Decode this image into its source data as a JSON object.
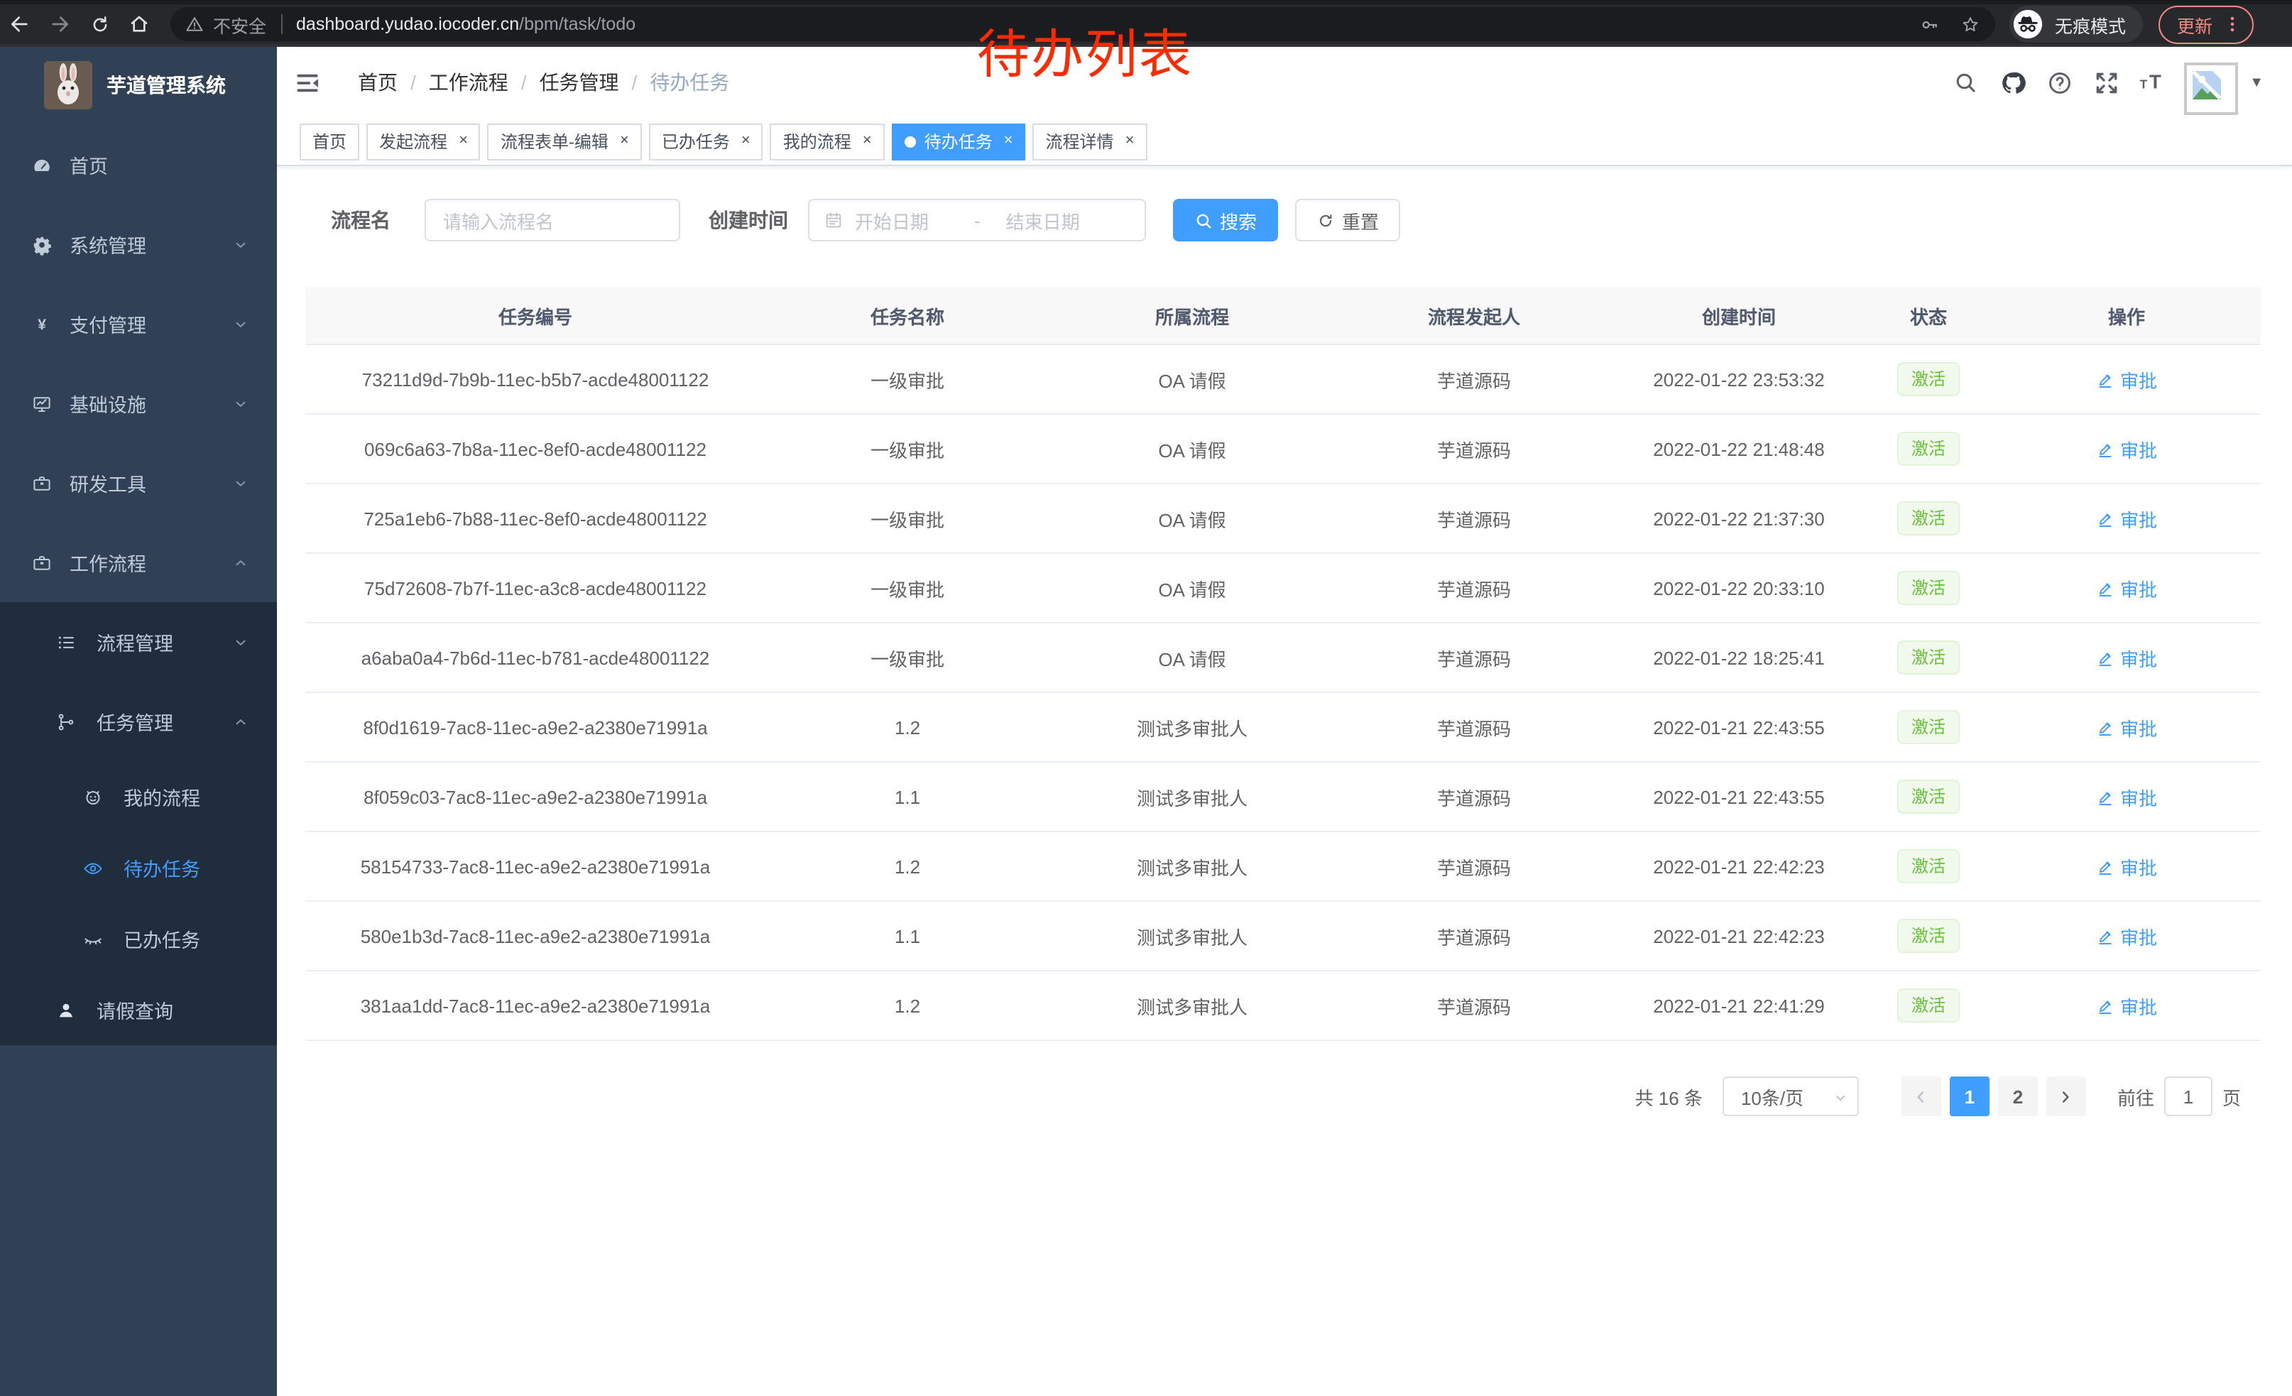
{
  "colors": {
    "accent": "#409eff",
    "sidebar_bg": "#304156",
    "submenu_bg": "#1f2d3d",
    "tag_bg": "#f0f9eb",
    "tag_border": "#e1f3d8",
    "tag_text": "#67c23a",
    "annotation_red": "#fe2b00"
  },
  "browser": {
    "security_label": "不安全",
    "url_host": "dashboard.yudao.iocoder.cn",
    "url_path": "/bpm/task/todo",
    "incognito_label": "无痕模式",
    "update_label": "更新",
    "annotation": "待办列表"
  },
  "sidebar": {
    "app_title": "芋道管理系统",
    "items": [
      {
        "label": "首页",
        "icon": "dashboard-icon",
        "level": 1,
        "chevron": null,
        "dark": false,
        "active": false
      },
      {
        "label": "系统管理",
        "icon": "gear-icon",
        "level": 1,
        "chevron": "down",
        "dark": false,
        "active": false
      },
      {
        "label": "支付管理",
        "icon": "yen-icon",
        "level": 1,
        "chevron": "down",
        "dark": false,
        "active": false
      },
      {
        "label": "基础设施",
        "icon": "monitor-icon",
        "level": 1,
        "chevron": "down",
        "dark": false,
        "active": false
      },
      {
        "label": "研发工具",
        "icon": "briefcase-icon",
        "level": 1,
        "chevron": "down",
        "dark": false,
        "active": false
      },
      {
        "label": "工作流程",
        "icon": "briefcase-icon",
        "level": 1,
        "chevron": "up",
        "dark": false,
        "active": false
      },
      {
        "label": "流程管理",
        "icon": "process-list-icon",
        "level": 2,
        "chevron": "down",
        "dark": true,
        "active": false
      },
      {
        "label": "任务管理",
        "icon": "task-tree-icon",
        "level": 2,
        "chevron": "up",
        "dark": true,
        "active": false
      },
      {
        "label": "我的流程",
        "icon": "robot-icon",
        "level": 3,
        "chevron": null,
        "dark": true,
        "active": false
      },
      {
        "label": "待办任务",
        "icon": "eye-icon",
        "level": 3,
        "chevron": null,
        "dark": true,
        "active": true
      },
      {
        "label": "已办任务",
        "icon": "eye-closed-icon",
        "level": 3,
        "chevron": null,
        "dark": true,
        "active": false
      },
      {
        "label": "请假查询",
        "icon": "user-icon",
        "level": 2,
        "chevron": null,
        "dark": true,
        "active": false,
        "light_icon": true
      }
    ]
  },
  "header": {
    "breadcrumb": [
      "首页",
      "工作流程",
      "任务管理",
      "待办任务"
    ]
  },
  "tabs": [
    {
      "label": "首页",
      "closable": false,
      "active": false
    },
    {
      "label": "发起流程",
      "closable": true,
      "active": false
    },
    {
      "label": "流程表单-编辑",
      "closable": true,
      "active": false
    },
    {
      "label": "已办任务",
      "closable": true,
      "active": false
    },
    {
      "label": "我的流程",
      "closable": true,
      "active": false
    },
    {
      "label": "待办任务",
      "closable": true,
      "active": true
    },
    {
      "label": "流程详情",
      "closable": true,
      "active": false
    }
  ],
  "filters": {
    "name_label": "流程名",
    "name_placeholder": "请输入流程名",
    "time_label": "创建时间",
    "start_placeholder": "开始日期",
    "range_separator": "-",
    "end_placeholder": "结束日期",
    "search_label": "搜索",
    "reset_label": "重置"
  },
  "table": {
    "columns": [
      "任务编号",
      "任务名称",
      "所属流程",
      "流程发起人",
      "创建时间",
      "状态",
      "操作"
    ],
    "action_label": "审批",
    "rows": [
      {
        "id": "73211d9d-7b9b-11ec-b5b7-acde48001122",
        "name": "一级审批",
        "flow": "OA 请假",
        "starter": "芋道源码",
        "time": "2022-01-22 23:53:32",
        "status": "激活",
        "action": "审批"
      },
      {
        "id": "069c6a63-7b8a-11ec-8ef0-acde48001122",
        "name": "一级审批",
        "flow": "OA 请假",
        "starter": "芋道源码",
        "time": "2022-01-22 21:48:48",
        "status": "激活",
        "action": "审批"
      },
      {
        "id": "725a1eb6-7b88-11ec-8ef0-acde48001122",
        "name": "一级审批",
        "flow": "OA 请假",
        "starter": "芋道源码",
        "time": "2022-01-22 21:37:30",
        "status": "激活",
        "action": "审批"
      },
      {
        "id": "75d72608-7b7f-11ec-a3c8-acde48001122",
        "name": "一级审批",
        "flow": "OA 请假",
        "starter": "芋道源码",
        "time": "2022-01-22 20:33:10",
        "status": "激活",
        "action": "审批"
      },
      {
        "id": "a6aba0a4-7b6d-11ec-b781-acde48001122",
        "name": "一级审批",
        "flow": "OA 请假",
        "starter": "芋道源码",
        "time": "2022-01-22 18:25:41",
        "status": "激活",
        "action": "审批"
      },
      {
        "id": "8f0d1619-7ac8-11ec-a9e2-a2380e71991a",
        "name": "1.2",
        "flow": "测试多审批人",
        "starter": "芋道源码",
        "time": "2022-01-21 22:43:55",
        "status": "激活",
        "action": "审批"
      },
      {
        "id": "8f059c03-7ac8-11ec-a9e2-a2380e71991a",
        "name": "1.1",
        "flow": "测试多审批人",
        "starter": "芋道源码",
        "time": "2022-01-21 22:43:55",
        "status": "激活",
        "action": "审批"
      },
      {
        "id": "58154733-7ac8-11ec-a9e2-a2380e71991a",
        "name": "1.2",
        "flow": "测试多审批人",
        "starter": "芋道源码",
        "time": "2022-01-21 22:42:23",
        "status": "激活",
        "action": "审批"
      },
      {
        "id": "580e1b3d-7ac8-11ec-a9e2-a2380e71991a",
        "name": "1.1",
        "flow": "测试多审批人",
        "starter": "芋道源码",
        "time": "2022-01-21 22:42:23",
        "status": "激活",
        "action": "审批"
      },
      {
        "id": "381aa1dd-7ac8-11ec-a9e2-a2380e71991a",
        "name": "1.2",
        "flow": "测试多审批人",
        "starter": "芋道源码",
        "time": "2022-01-21 22:41:29",
        "status": "激活",
        "action": "审批"
      }
    ]
  },
  "pagination": {
    "total_label": "共 16 条",
    "page_size": "10条/页",
    "pages": [
      "1",
      "2"
    ],
    "active_page": "1",
    "goto_label": "前往",
    "goto_value": "1",
    "goto_unit": "页"
  }
}
